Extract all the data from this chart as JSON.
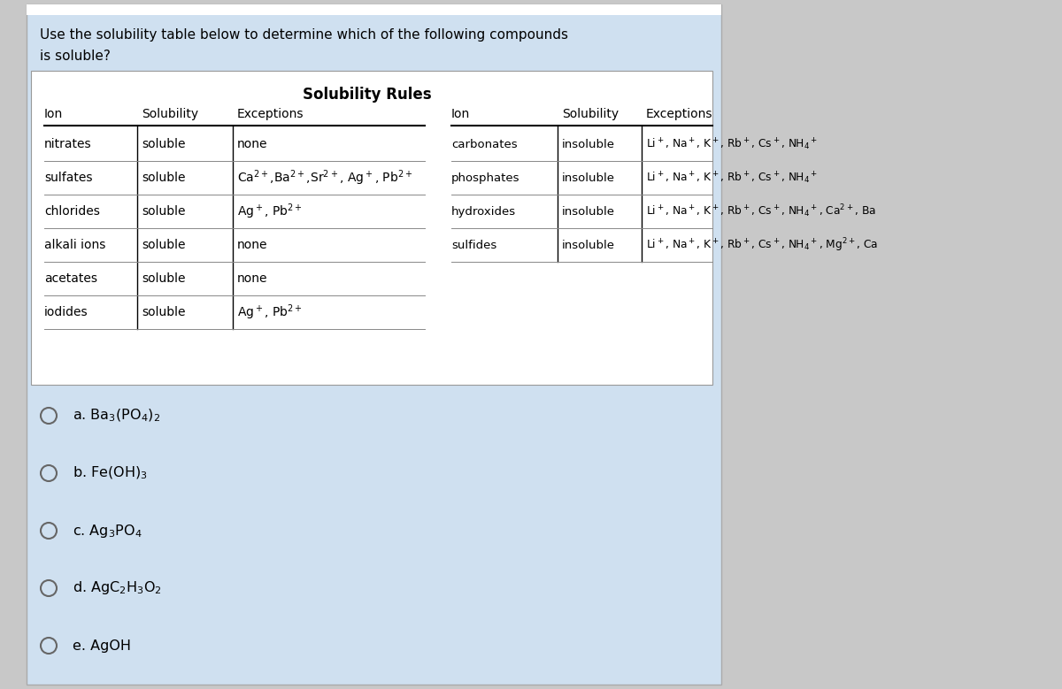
{
  "title_question_line1": "Use the solubility table below to determine which of the following compounds",
  "title_question_line2": "is soluble?",
  "table_title": "Solubility Rules",
  "bg_color": "#cfe0f0",
  "table_bg": "#ffffff",
  "outer_bg": "#d8d8d8",
  "left_table": {
    "headers": [
      "Ion",
      "Solubility",
      "Exceptions"
    ],
    "rows": [
      [
        "nitrates",
        "soluble",
        "none"
      ],
      [
        "sulfates",
        "soluble",
        "Ca$^{2+}$,Ba$^{2+}$,Sr$^{2+}$, Ag$^+$, Pb$^{2+}$"
      ],
      [
        "chlorides",
        "soluble",
        "Ag$^+$, Pb$^{2+}$"
      ],
      [
        "alkali ions",
        "soluble",
        "none"
      ],
      [
        "acetates",
        "soluble",
        "none"
      ],
      [
        "iodides",
        "soluble",
        "Ag$^+$, Pb$^{2+}$"
      ]
    ]
  },
  "right_table": {
    "headers": [
      "Ion",
      "Solubility",
      "Exceptions"
    ],
    "rows": [
      [
        "carbonates",
        "insoluble",
        "Li$^+$, Na$^+$, K$^+$, Rb$^+$, Cs$^+$, NH$_4$$^+$"
      ],
      [
        "phosphates",
        "insoluble",
        "Li$^+$, Na$^+$, K$^+$, Rb$^+$, Cs$^+$, NH$_4$$^+$"
      ],
      [
        "hydroxides",
        "insoluble",
        "Li$^+$, Na$^+$, K$^+$, Rb$^+$, Cs$^+$, NH$_4$$^+$, Ca$^{2+}$, Ba"
      ],
      [
        "sulfides",
        "insoluble",
        "Li$^+$, Na$^+$, K$^+$, Rb$^+$, Cs$^+$, NH$_4$$^+$, Mg$^{2+}$, Ca"
      ]
    ]
  },
  "answer_choices": [
    "a. Ba$_3$(PO$_4$)$_2$",
    "b. Fe(OH)$_3$",
    "c. Ag$_3$PO$_4$",
    "d. AgC$_2$H$_3$O$_2$",
    "e. AgOH"
  ]
}
